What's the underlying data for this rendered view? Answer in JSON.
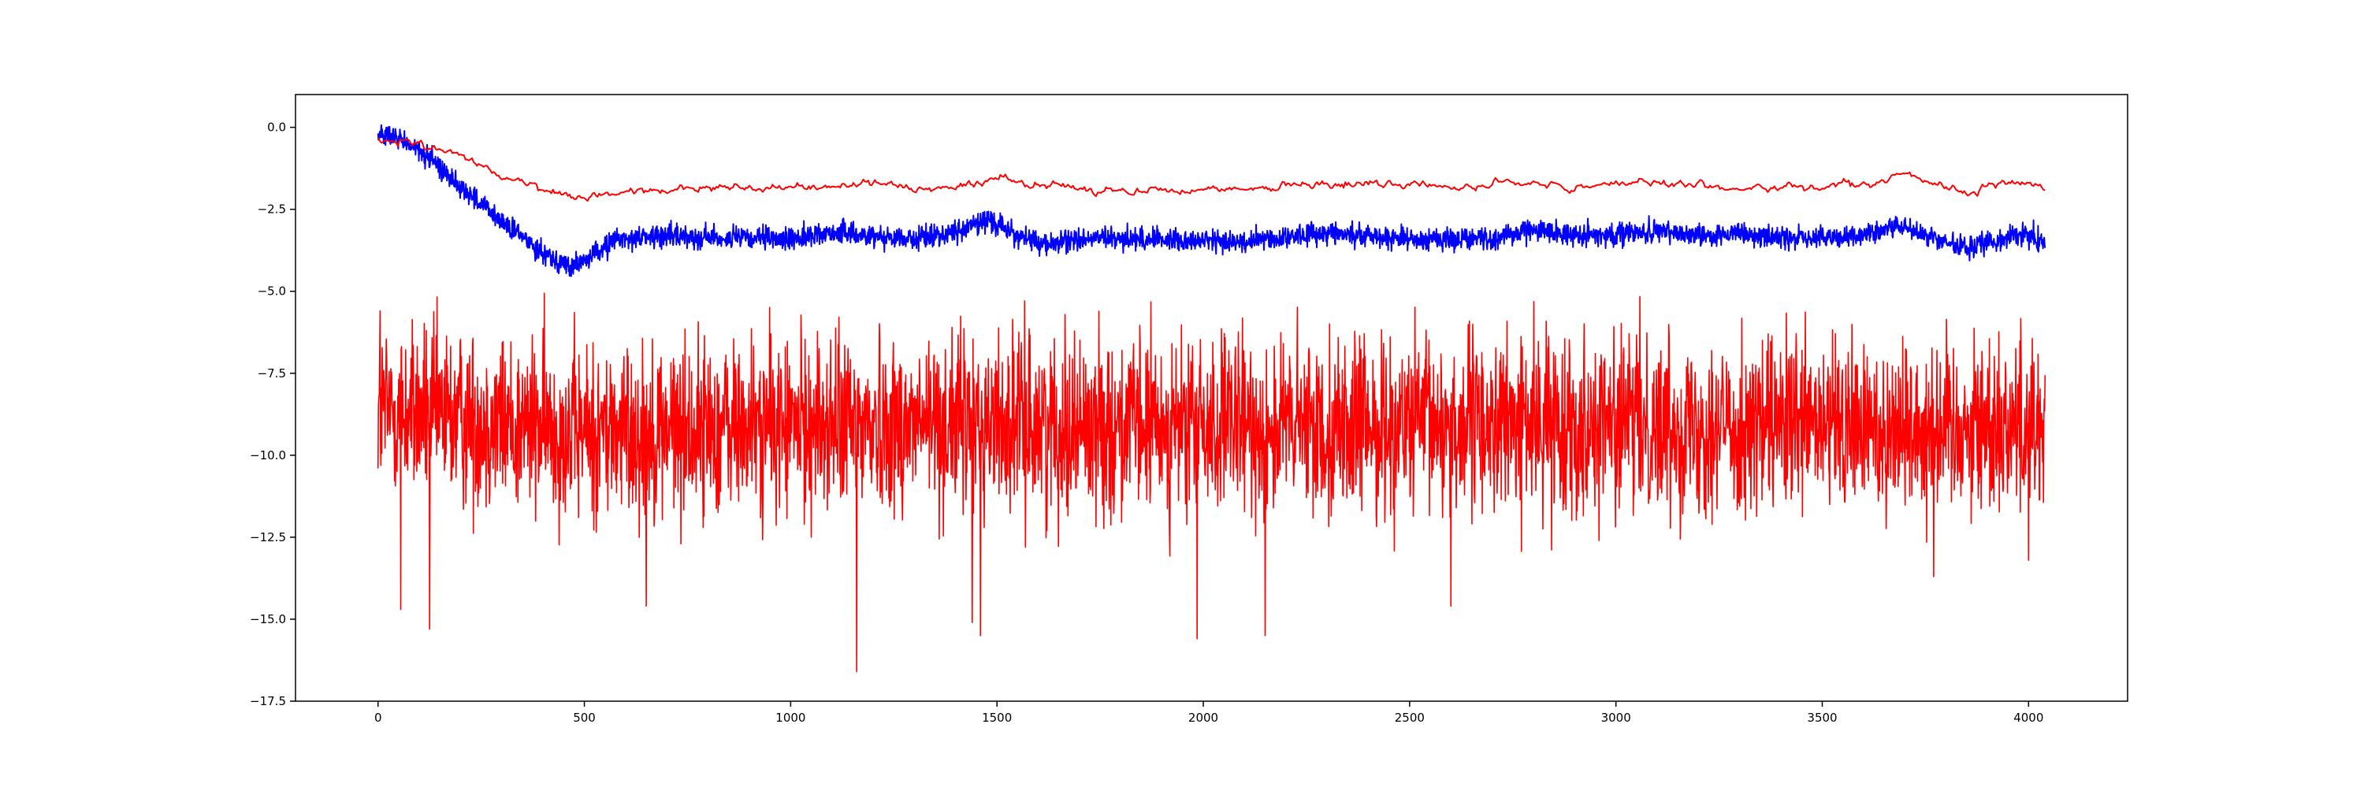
{
  "chart_data": {
    "type": "line",
    "title": "",
    "xlabel": "",
    "ylabel": "",
    "xlim": [
      -200,
      4240
    ],
    "ylim": [
      -17.5,
      1.0
    ],
    "grid": false,
    "legend": "none",
    "x_ticks": [
      {
        "value": 0,
        "label": "0"
      },
      {
        "value": 500,
        "label": "500"
      },
      {
        "value": 1000,
        "label": "1000"
      },
      {
        "value": 1500,
        "label": "1500"
      },
      {
        "value": 2000,
        "label": "2000"
      },
      {
        "value": 2500,
        "label": "2500"
      },
      {
        "value": 3000,
        "label": "3000"
      },
      {
        "value": 3500,
        "label": "3500"
      },
      {
        "value": 4000,
        "label": "4000"
      }
    ],
    "y_ticks": [
      {
        "value": 0.0,
        "label": "0.0"
      },
      {
        "value": -2.5,
        "label": "−2.5"
      },
      {
        "value": -5.0,
        "label": "−5.0"
      },
      {
        "value": -7.5,
        "label": "−7.5"
      },
      {
        "value": -10.0,
        "label": "−10.0"
      },
      {
        "value": -12.5,
        "label": "−12.5"
      },
      {
        "value": -15.0,
        "label": "−15.0"
      },
      {
        "value": -17.5,
        "label": "−17.5"
      }
    ],
    "series": [
      {
        "color": "#ff0000",
        "style": "noisy",
        "noise": 1.35,
        "x": [
          0,
          500,
          1000,
          1500,
          2000,
          2500,
          3000,
          3500,
          4040
        ],
        "y": [
          -8.6,
          -9.3,
          -9.1,
          -9.0,
          -9.2,
          -9.1,
          -9.0,
          -9.2,
          -9.0
        ],
        "extremes": [
          {
            "x": 5,
            "y": -5.6
          },
          {
            "x": 55,
            "y": -14.7
          },
          {
            "x": 125,
            "y": -15.3
          },
          {
            "x": 650,
            "y": -14.6
          },
          {
            "x": 1160,
            "y": -16.6
          },
          {
            "x": 1440,
            "y": -15.1
          },
          {
            "x": 1460,
            "y": -15.5
          },
          {
            "x": 1985,
            "y": -15.6
          },
          {
            "x": 2150,
            "y": -15.5
          },
          {
            "x": 2600,
            "y": -14.6
          },
          {
            "x": 3770,
            "y": -13.7
          },
          {
            "x": 4000,
            "y": -13.2
          }
        ]
      },
      {
        "color": "#0000ff",
        "style": "noisy",
        "noise": 0.17,
        "x": [
          0,
          60,
          120,
          200,
          300,
          400,
          470,
          520,
          580,
          700,
          900,
          1000,
          1100,
          1200,
          1300,
          1400,
          1480,
          1550,
          1620,
          1700,
          1900,
          2100,
          2300,
          2500,
          2700,
          2800,
          2900,
          3100,
          3300,
          3500,
          3600,
          3680,
          3750,
          3850,
          3900,
          4000,
          4040
        ],
        "y": [
          -0.2,
          -0.4,
          -0.9,
          -1.8,
          -2.9,
          -3.8,
          -4.3,
          -3.9,
          -3.4,
          -3.3,
          -3.4,
          -3.4,
          -3.2,
          -3.3,
          -3.4,
          -3.2,
          -2.8,
          -3.3,
          -3.6,
          -3.4,
          -3.4,
          -3.5,
          -3.2,
          -3.4,
          -3.4,
          -3.1,
          -3.3,
          -3.2,
          -3.3,
          -3.4,
          -3.3,
          -3.0,
          -3.3,
          -3.7,
          -3.5,
          -3.2,
          -3.6
        ]
      },
      {
        "color": "#ff0000",
        "style": "smooth",
        "noise": 0.05,
        "x": [
          0,
          100,
          200,
          300,
          400,
          480,
          550,
          650,
          750,
          900,
          1100,
          1200,
          1300,
          1400,
          1500,
          1600,
          1750,
          1900,
          2100,
          2300,
          2500,
          2700,
          2800,
          2900,
          3000,
          3100,
          3200,
          3300,
          3400,
          3500,
          3600,
          3700,
          3800,
          3850,
          3950,
          4040
        ],
        "y": [
          -0.4,
          -0.5,
          -0.9,
          -1.5,
          -1.9,
          -2.25,
          -2.05,
          -1.95,
          -1.85,
          -1.85,
          -1.8,
          -1.65,
          -1.85,
          -1.75,
          -1.6,
          -1.75,
          -1.9,
          -1.9,
          -1.85,
          -1.75,
          -1.75,
          -1.8,
          -1.65,
          -1.85,
          -1.7,
          -1.65,
          -1.8,
          -1.9,
          -1.8,
          -1.85,
          -1.75,
          -1.5,
          -1.8,
          -1.95,
          -1.65,
          -1.75
        ]
      }
    ]
  }
}
